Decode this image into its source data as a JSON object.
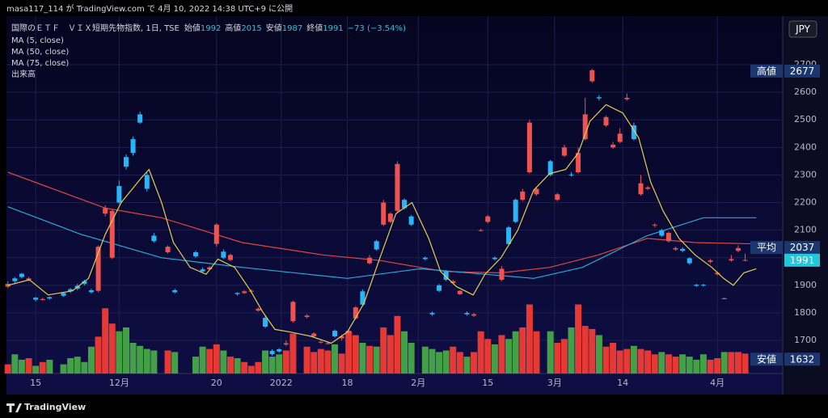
{
  "page": {
    "published": "masa117_114 が TradingView.com で 4月 10, 2022 14:38 UTC+9 に公開",
    "brand": "TradingView"
  },
  "chart_data": {
    "type": "candlestick",
    "title": "国際のＥＴＦ　ＶＩＸ短期先物指数, 1日, TSE",
    "header": [
      {
        "label": "始値",
        "value": 1992
      },
      {
        "label": "高値",
        "value": 2015
      },
      {
        "label": "安値",
        "value": 1987
      },
      {
        "label": "終値",
        "value": 1991
      }
    ],
    "change": "−73 (−3.54%)",
    "currency": "JPY",
    "up_color": "#29b6f6",
    "down_color": "#ef5350",
    "volume_name": "出来高",
    "volume_up_color": "#43a047",
    "volume_down_color": "#e53935",
    "volume_lim": [
      0,
      100
    ],
    "xlim": [
      -0.2,
      111.4
    ],
    "ylim": [
      1580,
      2876
    ],
    "yticks": [
      1700,
      1800,
      1900,
      2000,
      2100,
      2200,
      2300,
      2400,
      2500,
      2600,
      2700
    ],
    "xticks": [
      {
        "value": 4,
        "label": "15"
      },
      {
        "value": 16,
        "label": "12月"
      },
      {
        "value": 30,
        "label": "20"
      },
      {
        "value": 39.3,
        "label": "2022"
      },
      {
        "value": 48.8,
        "label": "18"
      },
      {
        "value": 59,
        "label": "2月"
      },
      {
        "value": 69,
        "label": "15"
      },
      {
        "value": 78.6,
        "label": "3月"
      },
      {
        "value": 88.4,
        "label": "14"
      },
      {
        "value": 102,
        "label": "4月"
      }
    ],
    "grid": true,
    "price_labels": [
      {
        "label": "高値",
        "value": 2677,
        "color": "#1c3670"
      },
      {
        "label": "平均",
        "value": 2037,
        "color": "#1c3670"
      },
      {
        "value": 1991,
        "color": "#26c6da"
      },
      {
        "label": "安値",
        "value": 1632,
        "color": "#1c3670"
      }
    ],
    "series": [
      {
        "name": "MA (5, close)",
        "color": "#e6cf4a",
        "x": [
          0,
          3.1,
          5.8,
          9.3,
          11.6,
          14,
          16.3,
          19.2,
          20.3,
          22.1,
          23.8,
          26.2,
          28.5,
          30.2,
          32.6,
          34.9,
          36.6,
          38.4,
          40.7,
          43.6,
          46.5,
          48.8,
          51.2,
          53.5,
          55.8,
          58.1,
          60.5,
          62.2,
          64.5,
          66.9,
          68.6,
          70.9,
          73.3,
          75.6,
          77.9,
          80.2,
          82,
          83.7,
          86,
          88.4,
          90.7,
          92.4,
          94.2,
          96.5,
          98.8,
          101.2,
          102.9,
          104.3,
          105.8,
          107.6
        ],
        "values": [
          1900,
          1920,
          1865,
          1880,
          1925,
          2085,
          2200,
          2290,
          2320,
          2200,
          2055,
          1965,
          1940,
          1995,
          1965,
          1880,
          1805,
          1740,
          1730,
          1715,
          1690,
          1730,
          1835,
          2000,
          2160,
          2200,
          2070,
          1950,
          1895,
          1865,
          1940,
          2000,
          2100,
          2245,
          2305,
          2320,
          2380,
          2495,
          2555,
          2525,
          2435,
          2275,
          2170,
          2070,
          2010,
          1965,
          1925,
          1900,
          1945,
          1960
        ]
      },
      {
        "name": "MA (50, close)",
        "color": "#e0453f",
        "x": [
          0,
          14,
          22.1,
          33.7,
          45.3,
          53.5,
          62.8,
          70.9,
          77.9,
          84.9,
          91.9,
          98.8,
          107.6
        ],
        "values": [
          2310,
          2180,
          2145,
          2055,
          2010,
          1990,
          1950,
          1945,
          1965,
          2010,
          2070,
          2055,
          2050
        ]
      },
      {
        "name": "MA (75, close)",
        "color": "#29a8d8",
        "x": [
          0,
          10.5,
          22.1,
          33.7,
          48.8,
          59.3,
          68.6,
          75.6,
          82.6,
          91.9,
          100,
          107.6
        ],
        "values": [
          2185,
          2085,
          2000,
          1965,
          1925,
          1960,
          1940,
          1925,
          1965,
          2080,
          2145,
          2145
        ]
      }
    ],
    "candles": [
      {
        "x": 0,
        "o": 1905,
        "h": 1915,
        "l": 1890,
        "c": 1895,
        "v": 12
      },
      {
        "x": 1,
        "o": 1915,
        "h": 1930,
        "l": 1905,
        "c": 1925,
        "v": 25
      },
      {
        "x": 2,
        "o": 1930,
        "h": 1945,
        "l": 1925,
        "c": 1942,
        "v": 18
      },
      {
        "x": 3,
        "o": 1925,
        "h": 1930,
        "l": 1915,
        "c": 1920,
        "v": 20
      },
      {
        "x": 4,
        "o": 1848,
        "h": 1858,
        "l": 1842,
        "c": 1855,
        "v": 10
      },
      {
        "x": 5,
        "o": 1850,
        "h": 1855,
        "l": 1845,
        "c": 1848,
        "v": 15
      },
      {
        "x": 6,
        "o": 1852,
        "h": 1860,
        "l": 1848,
        "c": 1857,
        "v": 18
      },
      {
        "x": 8,
        "o": 1862,
        "h": 1875,
        "l": 1858,
        "c": 1872,
        "v": 12
      },
      {
        "x": 9,
        "o": 1878,
        "h": 1890,
        "l": 1872,
        "c": 1886,
        "v": 20
      },
      {
        "x": 10,
        "o": 1888,
        "h": 1905,
        "l": 1882,
        "c": 1898,
        "v": 22
      },
      {
        "x": 11,
        "o": 1905,
        "h": 1920,
        "l": 1900,
        "c": 1915,
        "v": 15
      },
      {
        "x": 12,
        "o": 1875,
        "h": 1888,
        "l": 1870,
        "c": 1882,
        "v": 35
      },
      {
        "x": 13,
        "o": 2040,
        "h": 2045,
        "l": 1875,
        "c": 1880,
        "v": 48
      },
      {
        "x": 14,
        "o": 2180,
        "h": 2190,
        "l": 2150,
        "c": 2160,
        "v": 85
      },
      {
        "x": 15,
        "o": 2170,
        "h": 2175,
        "l": 1995,
        "c": 2000,
        "v": 65
      },
      {
        "x": 16,
        "o": 2200,
        "h": 2280,
        "l": 2195,
        "c": 2260,
        "v": 55
      },
      {
        "x": 17,
        "o": 2330,
        "h": 2375,
        "l": 2320,
        "c": 2365,
        "v": 60
      },
      {
        "x": 18,
        "o": 2380,
        "h": 2440,
        "l": 2370,
        "c": 2430,
        "v": 40
      },
      {
        "x": 19,
        "o": 2490,
        "h": 2530,
        "l": 2485,
        "c": 2520,
        "v": 36
      },
      {
        "x": 20,
        "o": 2250,
        "h": 2310,
        "l": 2240,
        "c": 2300,
        "v": 32
      },
      {
        "x": 21,
        "o": 2060,
        "h": 2090,
        "l": 2055,
        "c": 2080,
        "v": 30
      },
      {
        "x": 23,
        "o": 2040,
        "h": 2045,
        "l": 2015,
        "c": 2020,
        "v": 30
      },
      {
        "x": 24,
        "o": 1875,
        "h": 1888,
        "l": 1870,
        "c": 1882,
        "v": 28
      },
      {
        "x": 27,
        "o": 2005,
        "h": 2025,
        "l": 2000,
        "c": 2020,
        "v": 22
      },
      {
        "x": 28,
        "o": 1950,
        "h": 1965,
        "l": 1945,
        "c": 1958,
        "v": 35
      },
      {
        "x": 29,
        "o": 1965,
        "h": 1970,
        "l": 1955,
        "c": 1958,
        "v": 32
      },
      {
        "x": 30,
        "o": 2120,
        "h": 2125,
        "l": 2040,
        "c": 2050,
        "v": 38
      },
      {
        "x": 31,
        "o": 2000,
        "h": 2030,
        "l": 1995,
        "c": 2022,
        "v": 30
      },
      {
        "x": 32,
        "o": 2010,
        "h": 2015,
        "l": 1988,
        "c": 1992,
        "v": 22
      },
      {
        "x": 33,
        "o": 1868,
        "h": 1875,
        "l": 1862,
        "c": 1872,
        "v": 20
      },
      {
        "x": 34,
        "o": 1878,
        "h": 1882,
        "l": 1868,
        "c": 1872,
        "v": 15
      },
      {
        "x": 35,
        "o": 1880,
        "h": 1885,
        "l": 1872,
        "c": 1878,
        "v": 10
      },
      {
        "x": 36,
        "o": 1815,
        "h": 1820,
        "l": 1805,
        "c": 1808,
        "v": 15
      },
      {
        "x": 37,
        "o": 1750,
        "h": 1790,
        "l": 1745,
        "c": 1782,
        "v": 30
      },
      {
        "x": 38,
        "o": 1650,
        "h": 1668,
        "l": 1645,
        "c": 1662,
        "v": 22
      },
      {
        "x": 39,
        "o": 1660,
        "h": 1672,
        "l": 1655,
        "c": 1668,
        "v": 25
      },
      {
        "x": 40,
        "o": 1690,
        "h": 1700,
        "l": 1680,
        "c": 1685,
        "v": 30
      },
      {
        "x": 41,
        "o": 1840,
        "h": 1845,
        "l": 1765,
        "c": 1770,
        "v": 52
      },
      {
        "x": 43,
        "o": 1790,
        "h": 1795,
        "l": 1780,
        "c": 1785,
        "v": 35
      },
      {
        "x": 44,
        "o": 1725,
        "h": 1730,
        "l": 1710,
        "c": 1715,
        "v": 28
      },
      {
        "x": 45,
        "o": 1695,
        "h": 1700,
        "l": 1688,
        "c": 1692,
        "v": 32
      },
      {
        "x": 46,
        "o": 1690,
        "h": 1695,
        "l": 1685,
        "c": 1688,
        "v": 30
      },
      {
        "x": 47,
        "o": 1715,
        "h": 1740,
        "l": 1710,
        "c": 1735,
        "v": 38
      },
      {
        "x": 48,
        "o": 1715,
        "h": 1720,
        "l": 1700,
        "c": 1708,
        "v": 26
      },
      {
        "x": 49,
        "o": 1735,
        "h": 1740,
        "l": 1720,
        "c": 1728,
        "v": 55
      },
      {
        "x": 50,
        "o": 1820,
        "h": 1825,
        "l": 1775,
        "c": 1780,
        "v": 50
      },
      {
        "x": 51,
        "o": 1830,
        "h": 1885,
        "l": 1825,
        "c": 1878,
        "v": 40
      },
      {
        "x": 52,
        "o": 2000,
        "h": 2010,
        "l": 1975,
        "c": 1980,
        "v": 36
      },
      {
        "x": 53,
        "o": 2030,
        "h": 2065,
        "l": 2025,
        "c": 2060,
        "v": 35
      },
      {
        "x": 54,
        "o": 2200,
        "h": 2210,
        "l": 2115,
        "c": 2120,
        "v": 60
      },
      {
        "x": 55,
        "o": 2160,
        "h": 2165,
        "l": 2125,
        "c": 2130,
        "v": 50
      },
      {
        "x": 56,
        "o": 2340,
        "h": 2350,
        "l": 2165,
        "c": 2170,
        "v": 75
      },
      {
        "x": 57,
        "o": 2180,
        "h": 2215,
        "l": 2175,
        "c": 2210,
        "v": 55
      },
      {
        "x": 58,
        "o": 2120,
        "h": 2155,
        "l": 2115,
        "c": 2150,
        "v": 40
      },
      {
        "x": 60,
        "o": 1995,
        "h": 2005,
        "l": 1990,
        "c": 2000,
        "v": 35
      },
      {
        "x": 61,
        "o": 1795,
        "h": 1805,
        "l": 1790,
        "c": 1800,
        "v": 32
      },
      {
        "x": 62,
        "o": 1880,
        "h": 1905,
        "l": 1875,
        "c": 1900,
        "v": 28
      },
      {
        "x": 63,
        "o": 1920,
        "h": 1955,
        "l": 1915,
        "c": 1950,
        "v": 30
      },
      {
        "x": 64,
        "o": 1915,
        "h": 1920,
        "l": 1905,
        "c": 1908,
        "v": 35
      },
      {
        "x": 65,
        "o": 1880,
        "h": 1882,
        "l": 1865,
        "c": 1868,
        "v": 28
      },
      {
        "x": 66,
        "o": 1795,
        "h": 1805,
        "l": 1790,
        "c": 1800,
        "v": 22
      },
      {
        "x": 67,
        "o": 1795,
        "h": 1800,
        "l": 1785,
        "c": 1790,
        "v": 28
      },
      {
        "x": 68,
        "o": 2100,
        "h": 2105,
        "l": 2095,
        "c": 2098,
        "v": 55
      },
      {
        "x": 69,
        "o": 2150,
        "h": 2155,
        "l": 2125,
        "c": 2130,
        "v": 45
      },
      {
        "x": 70,
        "o": 1995,
        "h": 2005,
        "l": 1990,
        "c": 2000,
        "v": 38
      },
      {
        "x": 71,
        "o": 1960,
        "h": 1970,
        "l": 1915,
        "c": 1920,
        "v": 50
      },
      {
        "x": 72,
        "o": 2050,
        "h": 2115,
        "l": 2045,
        "c": 2110,
        "v": 45
      },
      {
        "x": 73,
        "o": 2130,
        "h": 2215,
        "l": 2125,
        "c": 2210,
        "v": 55
      },
      {
        "x": 74,
        "o": 2240,
        "h": 2250,
        "l": 2205,
        "c": 2210,
        "v": 60
      },
      {
        "x": 75,
        "o": 2490,
        "h": 2500,
        "l": 2305,
        "c": 2310,
        "v": 90
      },
      {
        "x": 76,
        "o": 2250,
        "h": 2255,
        "l": 2225,
        "c": 2230,
        "v": 55
      },
      {
        "x": 78,
        "o": 2300,
        "h": 2355,
        "l": 2295,
        "c": 2350,
        "v": 55
      },
      {
        "x": 79,
        "o": 2230,
        "h": 2235,
        "l": 2205,
        "c": 2210,
        "v": 40
      },
      {
        "x": 80,
        "o": 2400,
        "h": 2410,
        "l": 2365,
        "c": 2370,
        "v": 45
      },
      {
        "x": 81,
        "o": 2300,
        "h": 2310,
        "l": 2295,
        "c": 2302,
        "v": 60
      },
      {
        "x": 82,
        "o": 2380,
        "h": 2400,
        "l": 2305,
        "c": 2310,
        "v": 90
      },
      {
        "x": 83,
        "o": 2520,
        "h": 2580,
        "l": 2425,
        "c": 2430,
        "v": 62
      },
      {
        "x": 84,
        "o": 2680,
        "h": 2685,
        "l": 2635,
        "c": 2640,
        "v": 58
      },
      {
        "x": 85,
        "o": 2578,
        "h": 2590,
        "l": 2570,
        "c": 2582,
        "v": 50
      },
      {
        "x": 86,
        "o": 2510,
        "h": 2515,
        "l": 2475,
        "c": 2480,
        "v": 35
      },
      {
        "x": 87,
        "o": 2410,
        "h": 2420,
        "l": 2395,
        "c": 2400,
        "v": 40
      },
      {
        "x": 88,
        "o": 2450,
        "h": 2470,
        "l": 2415,
        "c": 2420,
        "v": 30
      },
      {
        "x": 89,
        "o": 2580,
        "h": 2595,
        "l": 2570,
        "c": 2575,
        "v": 32
      },
      {
        "x": 90,
        "o": 2430,
        "h": 2490,
        "l": 2425,
        "c": 2480,
        "v": 36
      },
      {
        "x": 91,
        "o": 2270,
        "h": 2300,
        "l": 2225,
        "c": 2230,
        "v": 32
      },
      {
        "x": 92,
        "o": 2255,
        "h": 2260,
        "l": 2245,
        "c": 2250,
        "v": 30
      },
      {
        "x": 93,
        "o": 2120,
        "h": 2125,
        "l": 2110,
        "c": 2118,
        "v": 25
      },
      {
        "x": 94,
        "o": 2080,
        "h": 2105,
        "l": 2075,
        "c": 2100,
        "v": 28
      },
      {
        "x": 95,
        "o": 2090,
        "h": 2095,
        "l": 2055,
        "c": 2060,
        "v": 25
      },
      {
        "x": 96,
        "o": 2035,
        "h": 2040,
        "l": 2025,
        "c": 2030,
        "v": 22
      },
      {
        "x": 97,
        "o": 2025,
        "h": 2038,
        "l": 2020,
        "c": 2032,
        "v": 25
      },
      {
        "x": 98,
        "o": 1980,
        "h": 2002,
        "l": 1975,
        "c": 1998,
        "v": 22
      },
      {
        "x": 99,
        "o": 1898,
        "h": 1905,
        "l": 1894,
        "c": 1902,
        "v": 18
      },
      {
        "x": 100,
        "o": 1900,
        "h": 1905,
        "l": 1895,
        "c": 1902,
        "v": 25
      },
      {
        "x": 101,
        "o": 1990,
        "h": 1995,
        "l": 1980,
        "c": 1985,
        "v": 18
      },
      {
        "x": 102,
        "o": 1945,
        "h": 1950,
        "l": 1935,
        "c": 1940,
        "v": 20
      },
      {
        "x": 103,
        "o": 1852,
        "h": 1855,
        "l": 1850,
        "c": 1853,
        "v": 28
      },
      {
        "x": 104,
        "o": 1995,
        "h": 2010,
        "l": 1985,
        "c": 1990,
        "v": 28
      },
      {
        "x": 105,
        "o": 2035,
        "h": 2045,
        "l": 2020,
        "c": 2025,
        "v": 28
      },
      {
        "x": 106,
        "o": 1992,
        "h": 2015,
        "l": 1987,
        "c": 1991,
        "v": 26
      }
    ]
  }
}
